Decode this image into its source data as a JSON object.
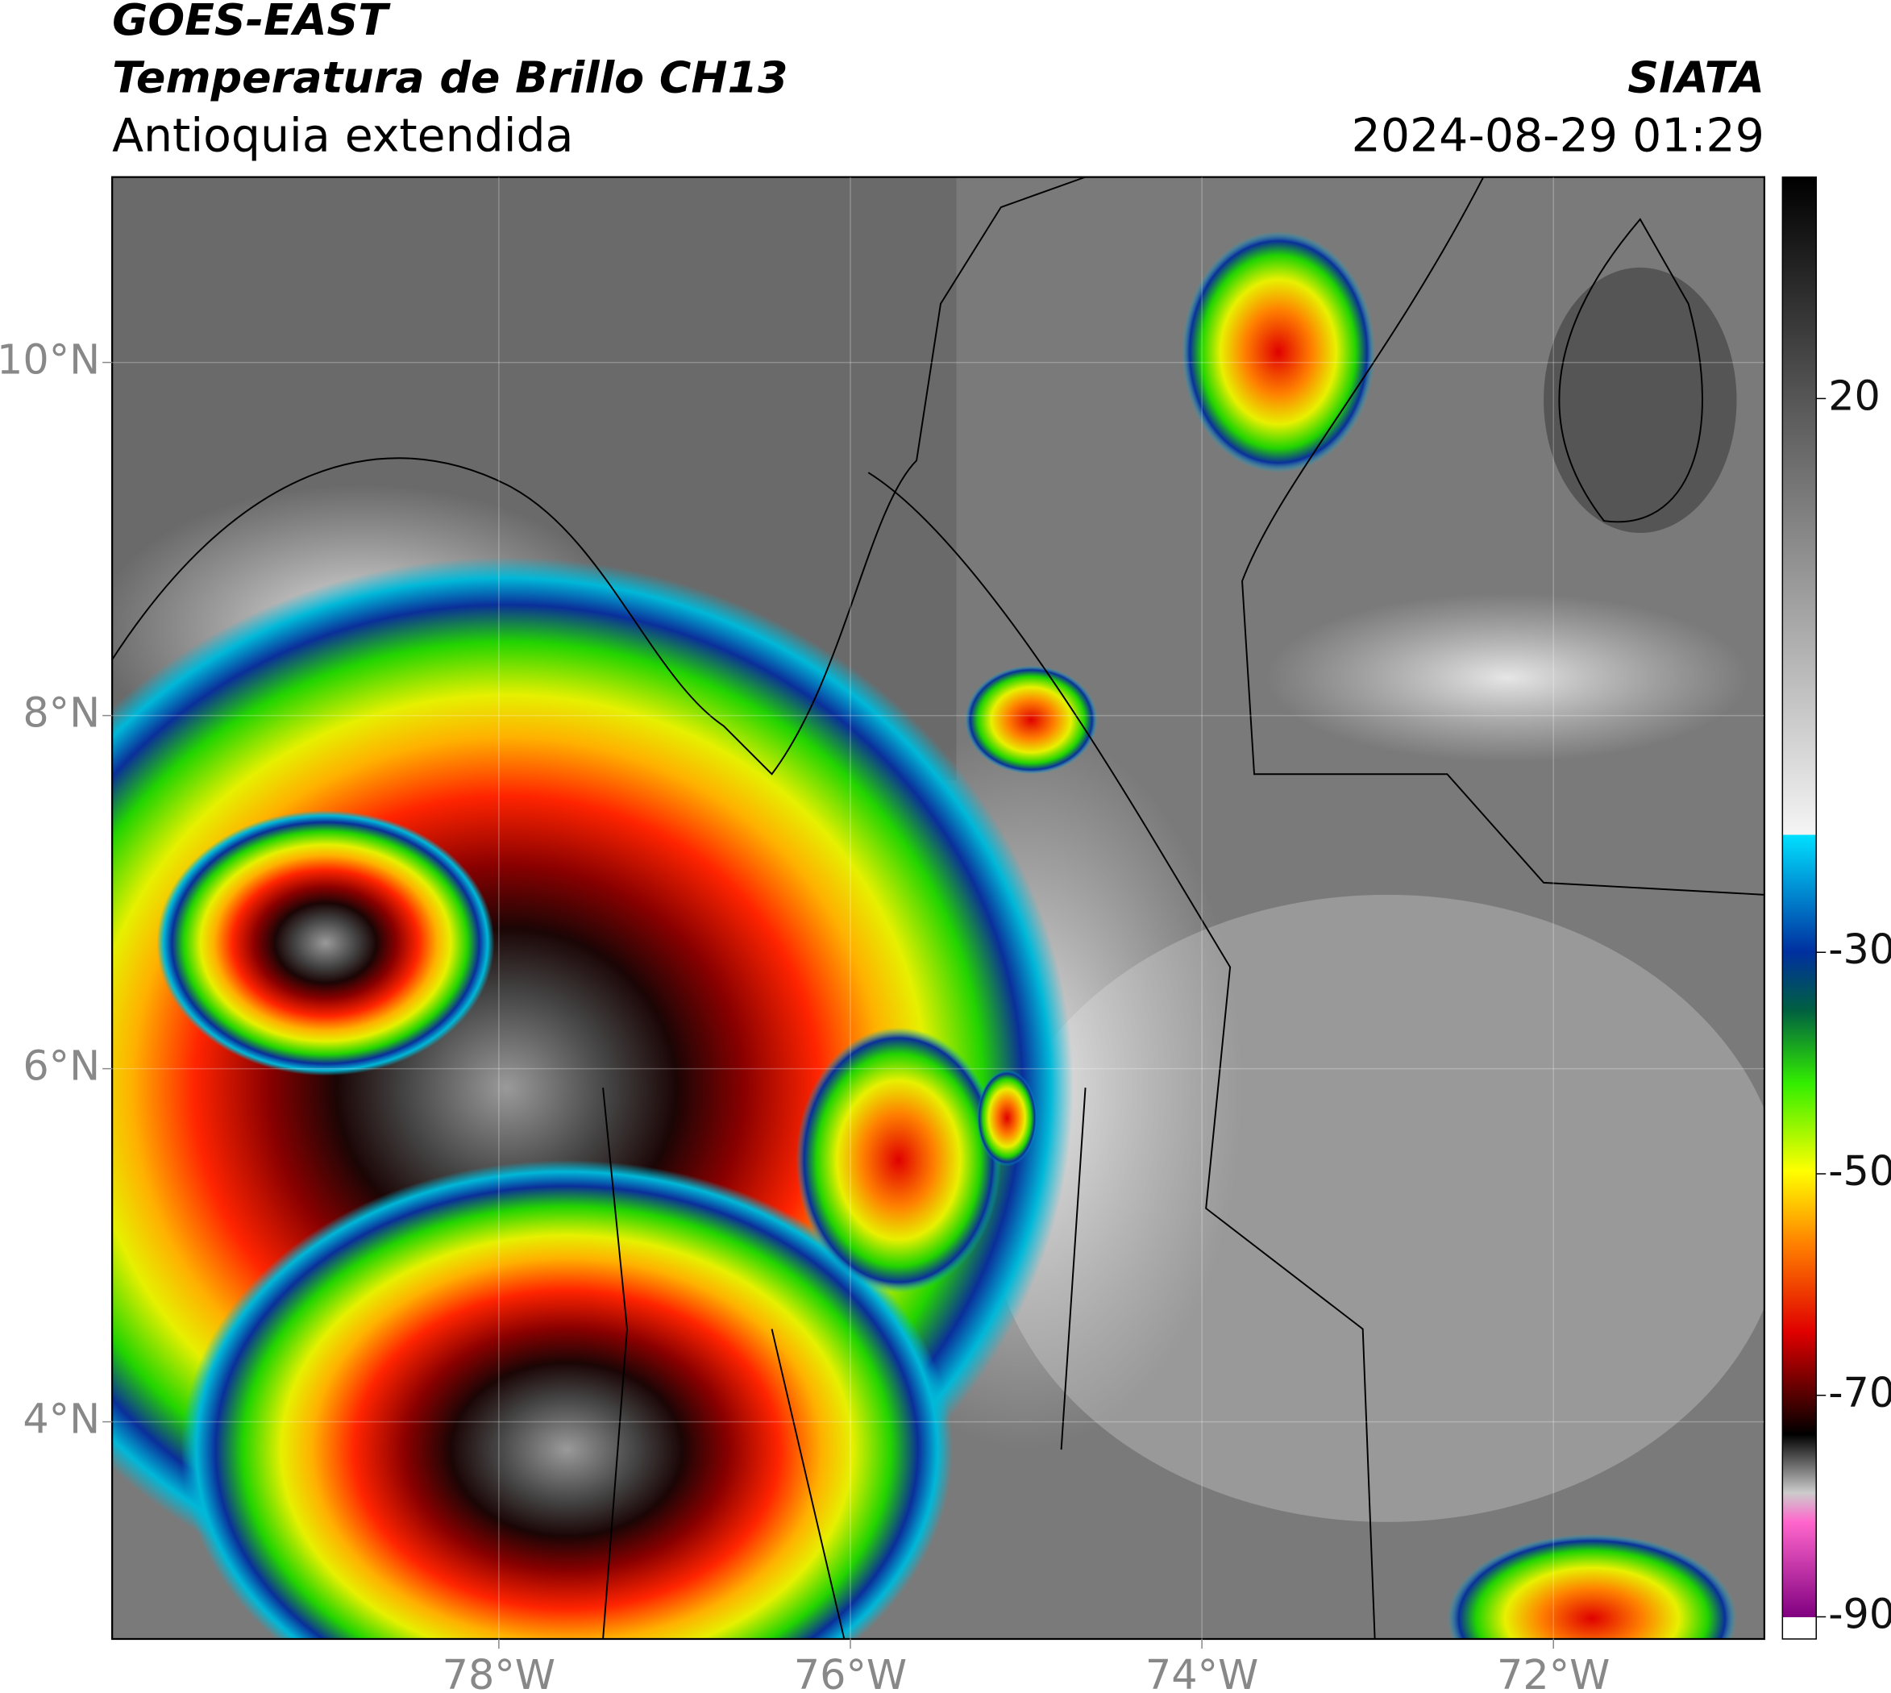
{
  "header": {
    "title_line1": "GOES-EAST",
    "title_line2": "Temperatura de Brillo CH13",
    "region": "Antioquia extendida",
    "agency": "SIATA",
    "timestamp": "2024-08-29 01:29"
  },
  "map": {
    "xlim": [
      -80.2,
      -70.8
    ],
    "ylim": [
      2.77,
      11.05
    ],
    "xticks": [
      {
        "value": -78,
        "label": "78°W"
      },
      {
        "value": -76,
        "label": "76°W"
      },
      {
        "value": -74,
        "label": "74°W"
      },
      {
        "value": -72,
        "label": "72°W"
      }
    ],
    "yticks": [
      {
        "value": 10,
        "label": "10°N"
      },
      {
        "value": 8,
        "label": "8°N"
      },
      {
        "value": 6,
        "label": "6°N"
      },
      {
        "value": 4,
        "label": "4°N"
      }
    ]
  },
  "colorbar": {
    "lim": [
      -92,
      40
    ],
    "ticks": [
      20,
      -30,
      -50,
      -70,
      -90
    ]
  }
}
